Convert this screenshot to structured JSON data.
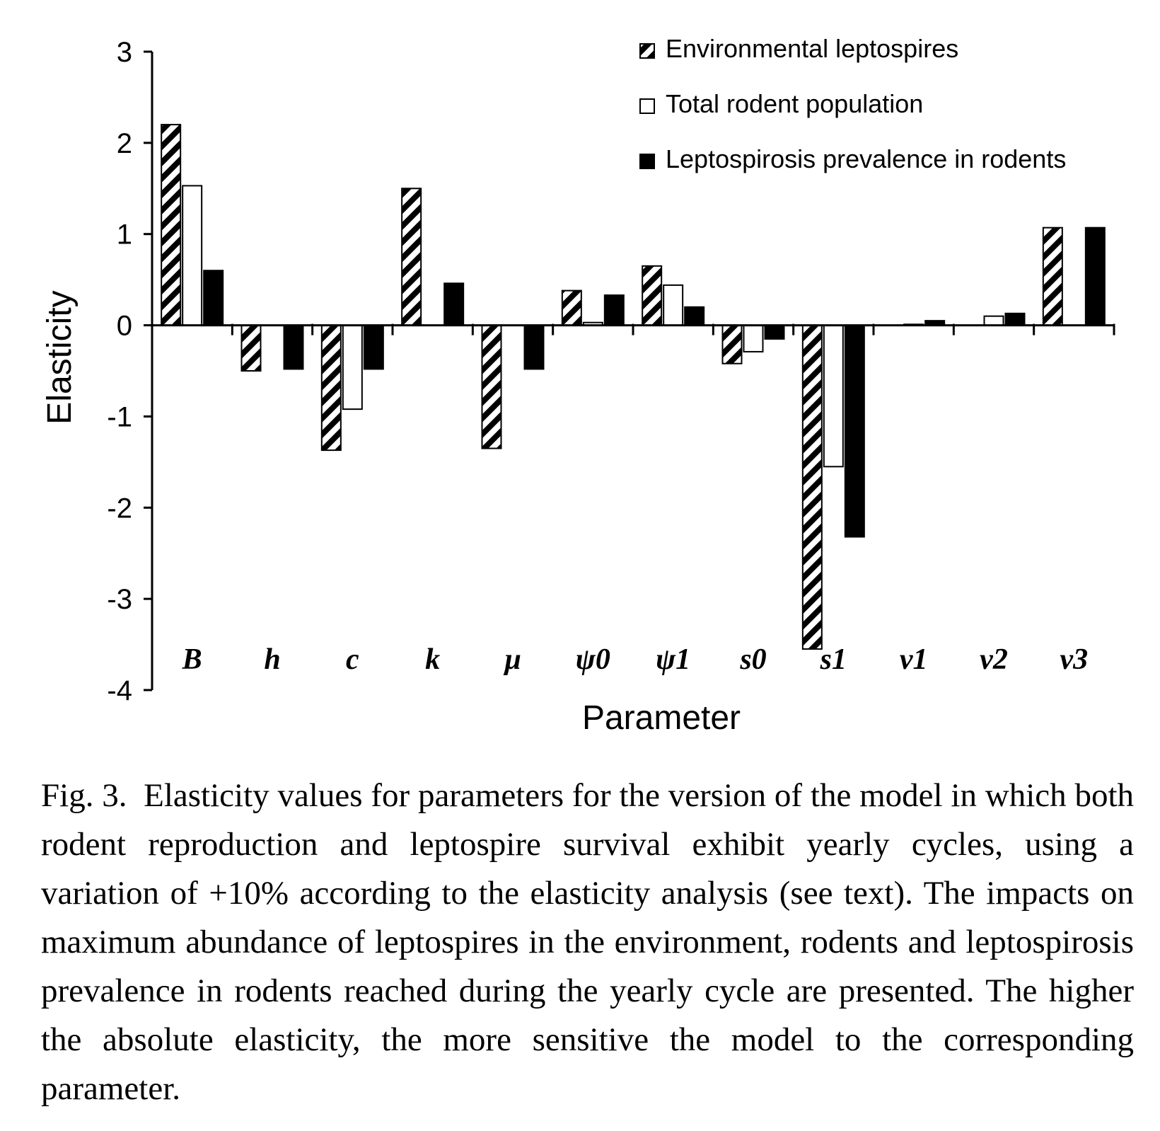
{
  "chart_data": {
    "type": "bar",
    "xlabel": "Parameter",
    "ylabel": "Elasticity",
    "ylim": [
      -4,
      3
    ],
    "yticks": [
      "3",
      "2",
      "1",
      "0",
      "-1",
      "-2",
      "-3",
      "-4"
    ],
    "categories": [
      "B",
      "h",
      "c",
      "k",
      "µ",
      "ψ0",
      "ψ1",
      "s0",
      "s1",
      "ν1",
      "ν2",
      "ν3"
    ],
    "series": [
      {
        "name": "Environmental leptospires",
        "pattern": "hatched",
        "values": [
          2.2,
          -0.5,
          -1.37,
          1.5,
          -1.35,
          0.38,
          0.65,
          -0.42,
          -3.55,
          0.0,
          0.0,
          1.07
        ]
      },
      {
        "name": "Total rodent population",
        "pattern": "white",
        "values": [
          1.53,
          0.0,
          -0.92,
          0.0,
          0.0,
          0.03,
          0.44,
          -0.29,
          -1.55,
          0.01,
          0.1,
          0.0
        ]
      },
      {
        "name": "Leptospirosis prevalence in rodents",
        "pattern": "black",
        "values": [
          0.6,
          -0.48,
          -0.48,
          0.46,
          -0.48,
          0.33,
          0.2,
          -0.15,
          -2.32,
          0.05,
          0.13,
          1.07
        ]
      }
    ],
    "legend_position": "top-right",
    "grid": false
  },
  "caption": "Fig. 3.  Elasticity values for parameters for the version of the model in which both rodent reproduction and leptospire survival exhibit yearly cycles, using a variation of +10% according to the elasticity analysis (see text). The impacts on maximum abundance of leptospires in the environment, rodents and leptospirosis prevalence in rodents reached during the yearly cycle are presented. The higher the absolute elasticity, the more sensitive the model to the corresponding parameter."
}
